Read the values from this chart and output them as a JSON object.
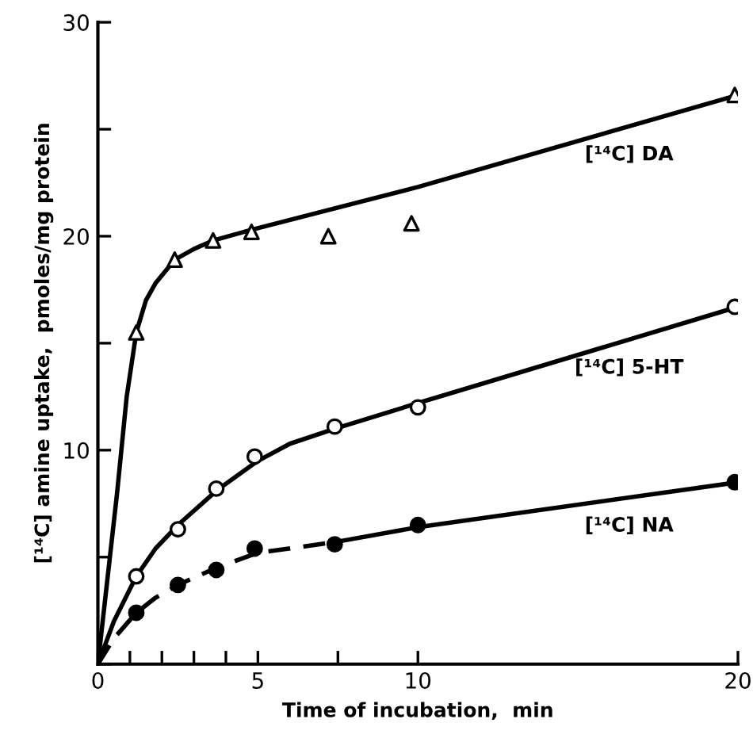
{
  "chart_data": {
    "type": "scatter",
    "xlabel": "Time of incubation,  min",
    "ylabel": "[¹⁴C] amine uptake,  pmoles/mg protein",
    "xlim": [
      0,
      20
    ],
    "ylim": [
      0,
      30
    ],
    "xticks": [
      0,
      {
        "value": 1,
        "label": null
      },
      {
        "value": 2,
        "label": null
      },
      {
        "value": 3,
        "label": null
      },
      {
        "value": 4,
        "label": null
      },
      5,
      {
        "value": 7.5,
        "label": null
      },
      10,
      20
    ],
    "yticks": [
      {
        "value": 0,
        "label": null
      },
      {
        "value": 5,
        "label": null
      },
      10,
      {
        "value": 15,
        "label": null
      },
      20,
      {
        "value": 25,
        "label": null
      },
      30
    ],
    "grid": false,
    "legend": false,
    "series": [
      {
        "type": "line",
        "name": "[¹⁴C] DA",
        "color": "#000000",
        "line_style": "solid",
        "marker": "none",
        "x": [
          0,
          0.6,
          0.9,
          1.2,
          1.5,
          1.8,
          2.4,
          3,
          3.6,
          4.8,
          10,
          20
        ],
        "values": [
          0,
          8,
          12.5,
          15.5,
          17,
          17.8,
          18.9,
          19.4,
          19.8,
          20.3,
          22.3,
          26.6
        ]
      },
      {
        "type": "line",
        "name": "[¹⁴C] 5-HT",
        "color": "#000000",
        "line_style": "solid",
        "marker": "none",
        "x": [
          0,
          0.5,
          1.2,
          1.8,
          2.5,
          3.7,
          5,
          6,
          7.4,
          10,
          20
        ],
        "values": [
          0,
          2,
          4.1,
          5.4,
          6.5,
          8.1,
          9.5,
          10.3,
          11.0,
          12.2,
          16.7
        ]
      },
      {
        "type": "line",
        "color": "#000000",
        "line_style": "dashed",
        "marker": "none",
        "x": [
          0,
          0.5,
          1.2,
          1.8,
          2.5,
          3.7,
          5,
          7.4
        ],
        "values": [
          0,
          1.2,
          2.4,
          3.1,
          3.7,
          4.5,
          5.2,
          5.7
        ]
      },
      {
        "type": "line",
        "name": "[¹⁴C] NA",
        "color": "#000000",
        "line_style": "solid",
        "marker": "none",
        "x": [
          7.4,
          10,
          20
        ],
        "values": [
          5.7,
          6.4,
          8.5
        ]
      },
      {
        "color": "#ffffff",
        "marker": "triangle",
        "x": [
          1.2,
          2.4,
          3.6,
          4.8,
          7.2,
          9.8,
          19.9
        ],
        "values": [
          15.5,
          18.9,
          19.8,
          20.2,
          20.0,
          20.6,
          26.6
        ]
      },
      {
        "color": "#ffffff",
        "marker": "circle",
        "x": [
          1.2,
          2.5,
          3.7,
          4.9,
          7.4,
          10,
          19.9
        ],
        "values": [
          4.1,
          6.3,
          8.2,
          9.7,
          11.1,
          12.0,
          16.7
        ]
      },
      {
        "color": "#000000",
        "marker": "circle",
        "x": [
          1.2,
          2.5,
          3.7,
          4.9,
          7.4,
          10,
          19.9
        ],
        "values": [
          2.4,
          3.7,
          4.4,
          5.4,
          5.6,
          6.5,
          8.5
        ]
      }
    ]
  }
}
